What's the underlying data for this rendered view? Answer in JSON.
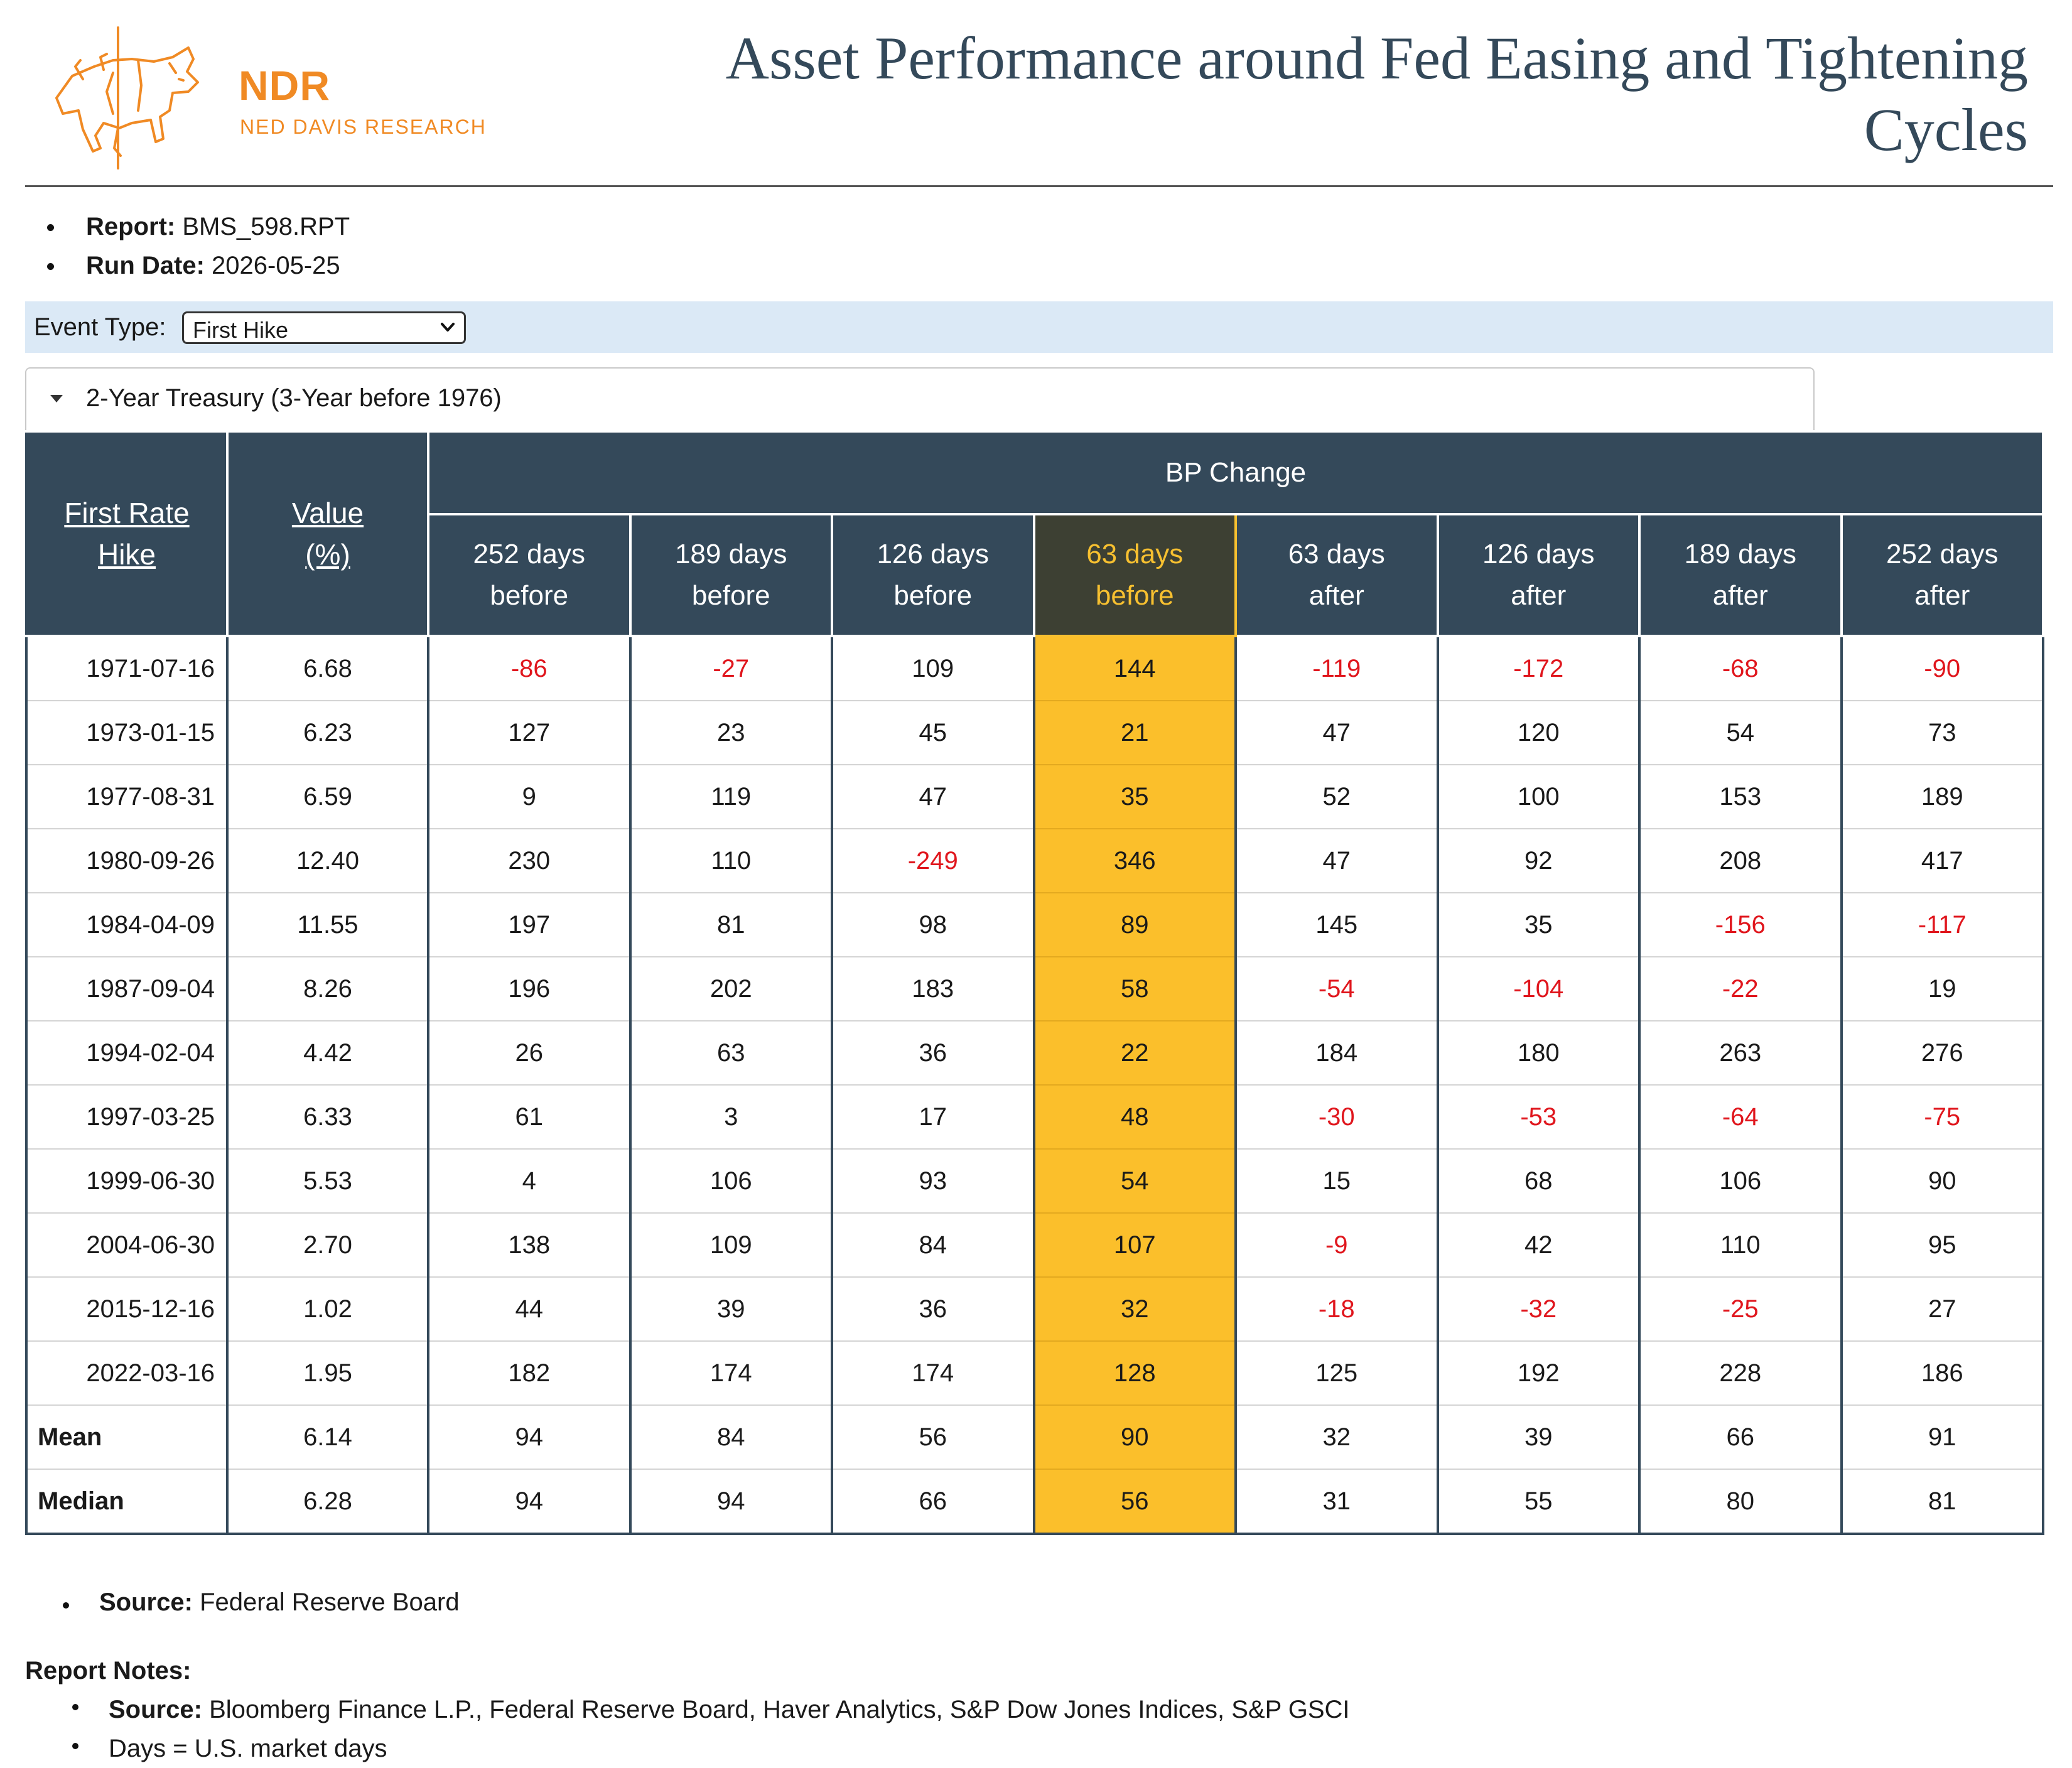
{
  "logo": {
    "name": "NDR",
    "subtitle": "NED DAVIS RESEARCH"
  },
  "page_title": "Asset Performance around Fed Easing and Tightening Cycles",
  "meta": {
    "report_label": "Report:",
    "report_value": "BMS_598.RPT",
    "run_date_label": "Run Date:",
    "run_date_value": "2026-05-25"
  },
  "event_type": {
    "label": "Event Type:",
    "selected": "First Hike"
  },
  "panel": {
    "title": "2-Year Treasury (3-Year before 1976)"
  },
  "table": {
    "col_first": [
      "First Rate",
      "Hike"
    ],
    "col_value": [
      "Value",
      "(%)"
    ],
    "group_header": "BP Change",
    "headers": [
      [
        "252 days",
        "before"
      ],
      [
        "189 days",
        "before"
      ],
      [
        "126 days",
        "before"
      ],
      [
        "63 days",
        "before"
      ],
      [
        "63 days",
        "after"
      ],
      [
        "126 days",
        "after"
      ],
      [
        "189 days",
        "after"
      ],
      [
        "252 days",
        "after"
      ]
    ],
    "highlight_col": 3,
    "rows": [
      {
        "date": "1971-07-16",
        "value": "6.68",
        "cells": [
          "-86",
          "-27",
          "109",
          "144",
          "-119",
          "-172",
          "-68",
          "-90"
        ]
      },
      {
        "date": "1973-01-15",
        "value": "6.23",
        "cells": [
          "127",
          "23",
          "45",
          "21",
          "47",
          "120",
          "54",
          "73"
        ]
      },
      {
        "date": "1977-08-31",
        "value": "6.59",
        "cells": [
          "9",
          "119",
          "47",
          "35",
          "52",
          "100",
          "153",
          "189"
        ]
      },
      {
        "date": "1980-09-26",
        "value": "12.40",
        "cells": [
          "230",
          "110",
          "-249",
          "346",
          "47",
          "92",
          "208",
          "417"
        ]
      },
      {
        "date": "1984-04-09",
        "value": "11.55",
        "cells": [
          "197",
          "81",
          "98",
          "89",
          "145",
          "35",
          "-156",
          "-117"
        ]
      },
      {
        "date": "1987-09-04",
        "value": "8.26",
        "cells": [
          "196",
          "202",
          "183",
          "58",
          "-54",
          "-104",
          "-22",
          "19"
        ]
      },
      {
        "date": "1994-02-04",
        "value": "4.42",
        "cells": [
          "26",
          "63",
          "36",
          "22",
          "184",
          "180",
          "263",
          "276"
        ]
      },
      {
        "date": "1997-03-25",
        "value": "6.33",
        "cells": [
          "61",
          "3",
          "17",
          "48",
          "-30",
          "-53",
          "-64",
          "-75"
        ]
      },
      {
        "date": "1999-06-30",
        "value": "5.53",
        "cells": [
          "4",
          "106",
          "93",
          "54",
          "15",
          "68",
          "106",
          "90"
        ]
      },
      {
        "date": "2004-06-30",
        "value": "2.70",
        "cells": [
          "138",
          "109",
          "84",
          "107",
          "-9",
          "42",
          "110",
          "95"
        ]
      },
      {
        "date": "2015-12-16",
        "value": "1.02",
        "cells": [
          "44",
          "39",
          "36",
          "32",
          "-18",
          "-32",
          "-25",
          "27"
        ]
      },
      {
        "date": "2022-03-16",
        "value": "1.95",
        "cells": [
          "182",
          "174",
          "174",
          "128",
          "125",
          "192",
          "228",
          "186"
        ]
      }
    ],
    "summary": [
      {
        "label": "Mean",
        "value": "6.14",
        "cells": [
          "94",
          "84",
          "56",
          "90",
          "32",
          "39",
          "66",
          "91"
        ]
      },
      {
        "label": "Median",
        "value": "6.28",
        "cells": [
          "94",
          "94",
          "66",
          "56",
          "31",
          "55",
          "80",
          "81"
        ]
      }
    ]
  },
  "source": {
    "label": "Source:",
    "text": "Federal Reserve Board"
  },
  "notes": {
    "heading": "Report Notes:",
    "source_label": "Source:",
    "source_text": "Bloomberg Finance L.P., Federal Reserve Board, Haver Analytics, S&P Dow Jones Indices, S&P GSCI",
    "days_note": "Days = U.S. market days"
  },
  "colors": {
    "header_bg": "#34495a",
    "highlight_bg": "#fbbf2b",
    "highlight_header_text": "#f7c030",
    "negative": "#e0161d",
    "brand": "#f08a24",
    "event_bar": "#dbe9f6"
  },
  "icons": {
    "logo_mark": "bull-bear-icon",
    "select_chevron": "chevron-down-icon",
    "panel_toggle": "caret-down-icon"
  }
}
